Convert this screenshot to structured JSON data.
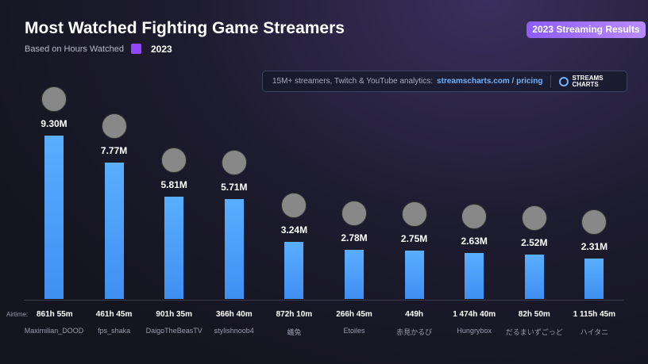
{
  "header": {
    "title": "Most Watched Fighting Game Streamers",
    "subtitle": "Based on Hours Watched",
    "year": "2023",
    "badge": "2023 Streaming Results"
  },
  "promo": {
    "text": "15M+ streamers, Twitch & YouTube analytics:",
    "link": "streamscharts.com / pricing",
    "logo": "STREAMS CHARTS"
  },
  "colors": {
    "bar": "#5aaeff",
    "badge": "#9b6cff",
    "twitch": "#9146ff"
  },
  "airtime_label": "Airtime:",
  "chart_data": {
    "type": "bar",
    "categories": [
      "Maximilian_DOOD",
      "fps_shaka",
      "DaigoTheBeasTV",
      "stylishnoob4",
      "蟻兔",
      "Etoiles",
      "赤見かるび",
      "Hungrybox",
      "だるまいずごっど",
      "ハイタニ"
    ],
    "values": [
      9.3,
      7.77,
      5.81,
      5.71,
      3.24,
      2.78,
      2.75,
      2.63,
      2.52,
      2.31
    ],
    "value_labels": [
      "9.30M",
      "7.77M",
      "5.81M",
      "5.71M",
      "3.24M",
      "2.78M",
      "2.75M",
      "2.63M",
      "2.52M",
      "2.31M"
    ],
    "airtime": [
      "861h 55m",
      "461h 45m",
      "901h 35m",
      "366h 40m",
      "872h 10m",
      "266h 45m",
      "449h",
      "1 474h 40m",
      "82h 50m",
      "1 115h 45m"
    ],
    "ylabel": "",
    "xlabel": "",
    "ylim": [
      0,
      9.3
    ],
    "grid": false
  }
}
